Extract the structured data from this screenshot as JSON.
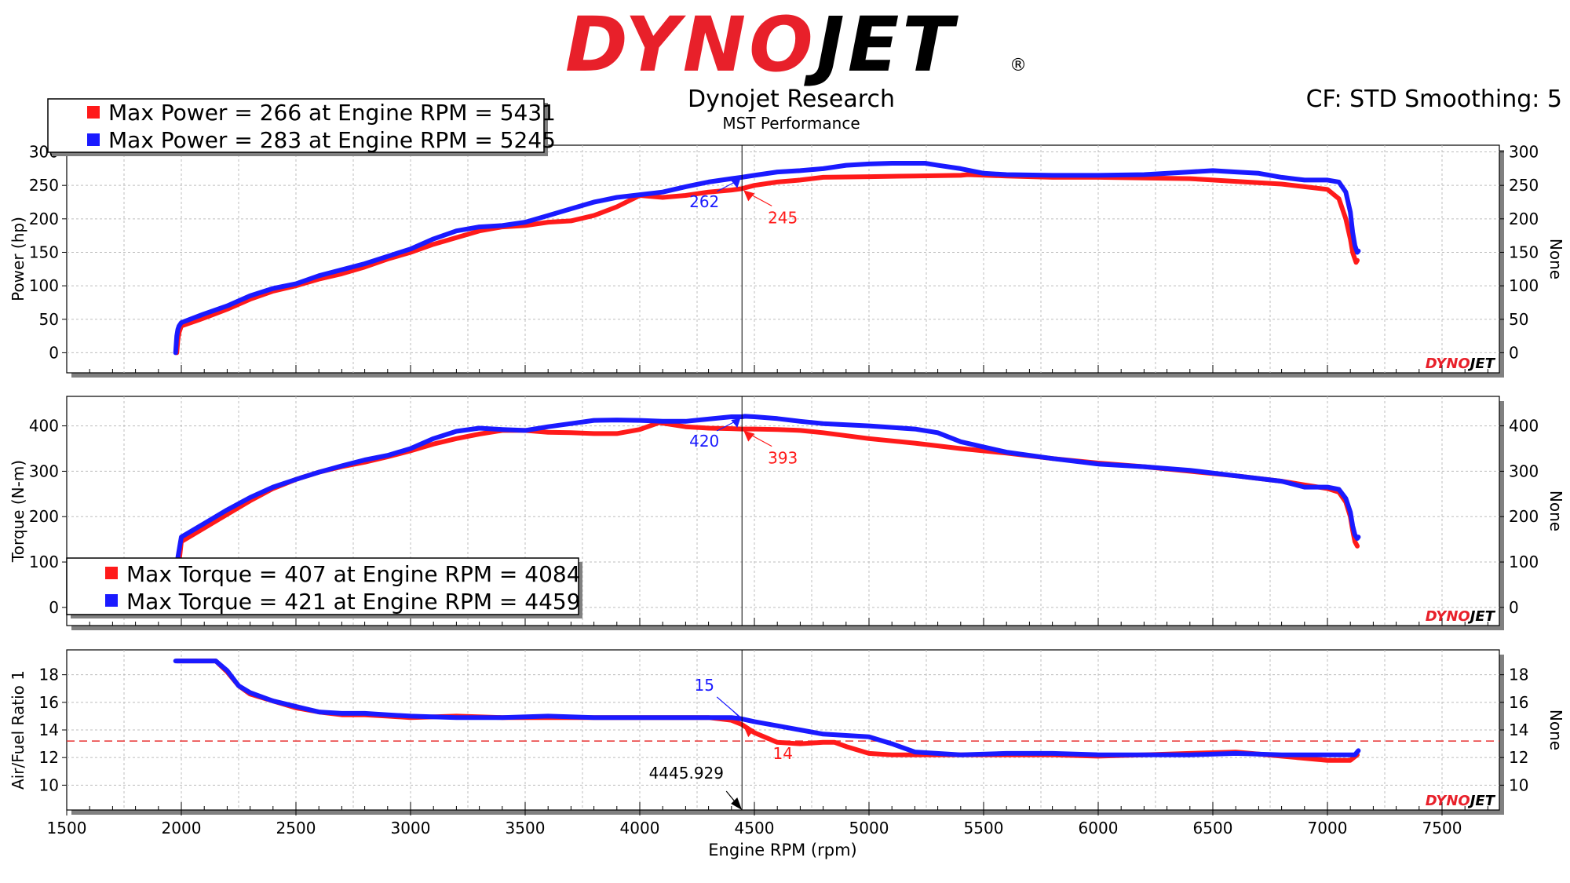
{
  "header": {
    "logo_text_red": "DYNO",
    "logo_text_black": "JET",
    "registered_mark": "®",
    "title": "Dynojet Research",
    "subtitle": "MST Performance",
    "settings": "CF: STD Smoothing: 5",
    "watermark_red": "DYNO",
    "watermark_black": "JET"
  },
  "colors": {
    "run1": "#ff1a1a",
    "run2": "#1a1aff",
    "afr_target_line": "#e83030",
    "frame": "#000000",
    "shadow": "#808080"
  },
  "chart_data": [
    {
      "type": "line",
      "panel": "power",
      "ylabel": "Power (hp)",
      "ylabel_right": "None",
      "xlim": [
        1500,
        7750
      ],
      "ylim": [
        -30,
        310
      ],
      "yticks": [
        0,
        50,
        100,
        150,
        200,
        250,
        300
      ],
      "series": [
        {
          "name": "Run 1",
          "color": "#ff1a1a",
          "x": [
            1980,
            1985,
            1990,
            2000,
            2100,
            2200,
            2300,
            2400,
            2500,
            2600,
            2700,
            2800,
            2900,
            3000,
            3100,
            3200,
            3300,
            3400,
            3500,
            3600,
            3700,
            3800,
            3900,
            4000,
            4100,
            4200,
            4300,
            4400,
            4445,
            4500,
            4600,
            4700,
            4800,
            5000,
            5200,
            5400,
            5431,
            5600,
            5800,
            6000,
            6200,
            6400,
            6600,
            6800,
            6900,
            7000,
            7050,
            7080,
            7100,
            7110,
            7120,
            7125,
            7130
          ],
          "y": [
            0,
            20,
            30,
            40,
            52,
            65,
            80,
            92,
            100,
            110,
            118,
            128,
            140,
            150,
            162,
            172,
            182,
            188,
            190,
            195,
            197,
            205,
            218,
            235,
            232,
            235,
            240,
            243,
            245,
            250,
            255,
            258,
            262,
            263,
            264,
            265,
            266,
            264,
            262,
            262,
            261,
            260,
            256,
            252,
            248,
            244,
            230,
            200,
            170,
            150,
            140,
            135,
            138
          ]
        },
        {
          "name": "Run 2",
          "color": "#1a1aff",
          "x": [
            1975,
            1980,
            1985,
            1990,
            2000,
            2100,
            2200,
            2300,
            2400,
            2500,
            2600,
            2700,
            2800,
            2900,
            3000,
            3100,
            3200,
            3300,
            3400,
            3500,
            3600,
            3700,
            3800,
            3900,
            4000,
            4100,
            4200,
            4300,
            4400,
            4445,
            4500,
            4600,
            4700,
            4800,
            4900,
            5000,
            5100,
            5245,
            5300,
            5400,
            5500,
            5600,
            5800,
            6000,
            6200,
            6400,
            6500,
            6600,
            6700,
            6800,
            6900,
            7000,
            7050,
            7080,
            7100,
            7110,
            7120,
            7130,
            7135
          ],
          "y": [
            0,
            25,
            35,
            40,
            45,
            58,
            70,
            85,
            96,
            103,
            115,
            124,
            133,
            144,
            155,
            170,
            182,
            188,
            190,
            195,
            205,
            215,
            225,
            232,
            236,
            240,
            248,
            255,
            260,
            262,
            265,
            270,
            272,
            275,
            280,
            282,
            283,
            283,
            280,
            275,
            268,
            266,
            265,
            265,
            266,
            270,
            272,
            270,
            268,
            262,
            258,
            258,
            255,
            240,
            210,
            180,
            160,
            150,
            152
          ]
        }
      ],
      "legend": [
        {
          "text": "Max Power = 266 at Engine RPM = 5431",
          "color": "#ff1a1a"
        },
        {
          "text": "Max Power = 283 at Engine RPM = 5245",
          "color": "#1a1aff"
        }
      ],
      "legend_placement": "top-left",
      "annotations": [
        {
          "label": "262",
          "color": "#1a1aff"
        },
        {
          "label": "245",
          "color": "#ff1a1a"
        }
      ]
    },
    {
      "type": "line",
      "panel": "torque",
      "ylabel": "Torque (N-m)",
      "ylabel_right": "None",
      "xlim": [
        1500,
        7750
      ],
      "ylim": [
        -40,
        465
      ],
      "yticks": [
        0,
        100,
        200,
        300,
        400
      ],
      "series": [
        {
          "name": "Run 1",
          "color": "#ff1a1a",
          "x": [
            1990,
            2000,
            2100,
            2200,
            2300,
            2400,
            2500,
            2600,
            2700,
            2800,
            2900,
            3000,
            3100,
            3200,
            3300,
            3400,
            3500,
            3600,
            3700,
            3800,
            3900,
            4000,
            4084,
            4100,
            4200,
            4300,
            4400,
            4445,
            4500,
            4600,
            4700,
            4800,
            5000,
            5200,
            5400,
            5600,
            5800,
            6000,
            6200,
            6400,
            6600,
            6800,
            6900,
            7000,
            7050,
            7080,
            7100,
            7110,
            7120,
            7130
          ],
          "y": [
            100,
            145,
            175,
            205,
            235,
            262,
            282,
            298,
            310,
            320,
            332,
            345,
            360,
            372,
            382,
            390,
            390,
            386,
            385,
            383,
            383,
            392,
            407,
            406,
            398,
            395,
            394,
            393,
            393,
            392,
            390,
            385,
            372,
            362,
            350,
            340,
            328,
            318,
            310,
            300,
            290,
            278,
            270,
            262,
            254,
            232,
            200,
            170,
            145,
            135
          ]
        },
        {
          "name": "Run 2",
          "color": "#1a1aff",
          "x": [
            1985,
            1995,
            2000,
            2100,
            2200,
            2300,
            2400,
            2500,
            2600,
            2700,
            2800,
            2900,
            3000,
            3100,
            3200,
            3300,
            3400,
            3500,
            3600,
            3700,
            3800,
            3900,
            4000,
            4100,
            4200,
            4300,
            4400,
            4445,
            4459,
            4500,
            4600,
            4700,
            4800,
            5000,
            5200,
            5300,
            5400,
            5600,
            5800,
            6000,
            6200,
            6400,
            6600,
            6800,
            6900,
            7000,
            7050,
            7080,
            7100,
            7110,
            7120,
            7130,
            7135
          ],
          "y": [
            110,
            140,
            155,
            185,
            215,
            242,
            265,
            282,
            298,
            312,
            325,
            335,
            350,
            372,
            388,
            395,
            392,
            390,
            398,
            405,
            412,
            413,
            412,
            410,
            410,
            415,
            420,
            420,
            421,
            420,
            416,
            410,
            405,
            400,
            393,
            385,
            365,
            342,
            328,
            316,
            310,
            302,
            290,
            278,
            265,
            265,
            260,
            240,
            210,
            180,
            160,
            152,
            155
          ]
        }
      ],
      "legend": [
        {
          "text": "Max Torque = 407 at Engine RPM = 4084",
          "color": "#ff1a1a"
        },
        {
          "text": "Max Torque = 421 at Engine RPM = 4459",
          "color": "#1a1aff"
        }
      ],
      "legend_placement": "bottom-left",
      "annotations": [
        {
          "label": "420",
          "color": "#1a1aff"
        },
        {
          "label": "393",
          "color": "#ff1a1a"
        }
      ]
    },
    {
      "type": "line",
      "panel": "afr",
      "ylabel": "Air/Fuel Ratio 1",
      "ylabel_right": "None",
      "xlabel": "Engine RPM (rpm)",
      "xlim": [
        1500,
        7750
      ],
      "ylim": [
        8.2,
        19.8
      ],
      "yticks": [
        10,
        12,
        14,
        16,
        18
      ],
      "xticks": [
        1500,
        2000,
        2500,
        3000,
        3500,
        4000,
        4500,
        5000,
        5500,
        6000,
        6500,
        7000,
        7500
      ],
      "target_line": 13.2,
      "series": [
        {
          "name": "Run 1",
          "color": "#ff1a1a",
          "x": [
            1980,
            2000,
            2100,
            2150,
            2200,
            2250,
            2300,
            2400,
            2500,
            2600,
            2700,
            2800,
            2900,
            3000,
            3200,
            3400,
            3600,
            3800,
            4000,
            4200,
            4300,
            4400,
            4445,
            4500,
            4600,
            4700,
            4800,
            4850,
            4900,
            5000,
            5100,
            5200,
            5400,
            5600,
            5800,
            6000,
            6200,
            6400,
            6600,
            6800,
            7000,
            7100,
            7130
          ],
          "y": [
            19,
            19,
            19,
            19,
            18.2,
            17.2,
            16.6,
            16.1,
            15.6,
            15.3,
            15.1,
            15.1,
            15.0,
            14.9,
            15.0,
            14.9,
            14.9,
            14.9,
            14.9,
            14.9,
            14.9,
            14.7,
            14.4,
            13.8,
            13.1,
            13.0,
            13.1,
            13.1,
            12.8,
            12.3,
            12.2,
            12.2,
            12.2,
            12.2,
            12.2,
            12.1,
            12.2,
            12.3,
            12.4,
            12.1,
            11.8,
            11.8,
            12.2
          ]
        },
        {
          "name": "Run 2",
          "color": "#1a1aff",
          "x": [
            1975,
            2000,
            2100,
            2150,
            2200,
            2250,
            2300,
            2400,
            2500,
            2600,
            2700,
            2800,
            2900,
            3000,
            3200,
            3400,
            3600,
            3800,
            4000,
            4200,
            4300,
            4400,
            4445,
            4500,
            4600,
            4700,
            4800,
            4900,
            5000,
            5100,
            5200,
            5400,
            5600,
            5800,
            6000,
            6200,
            6400,
            6600,
            6800,
            7000,
            7100,
            7120,
            7135
          ],
          "y": [
            19,
            19,
            19,
            19,
            18.3,
            17.2,
            16.7,
            16.1,
            15.7,
            15.3,
            15.2,
            15.2,
            15.1,
            15.0,
            14.9,
            14.9,
            15.0,
            14.9,
            14.9,
            14.9,
            14.9,
            14.9,
            14.8,
            14.6,
            14.3,
            14.0,
            13.7,
            13.6,
            13.5,
            13.0,
            12.4,
            12.2,
            12.3,
            12.3,
            12.2,
            12.2,
            12.2,
            12.3,
            12.2,
            12.2,
            12.2,
            12.2,
            12.5
          ]
        }
      ],
      "annotations": [
        {
          "label": "15",
          "color": "#1a1aff"
        },
        {
          "label": "14",
          "color": "#ff1a1a"
        }
      ]
    }
  ],
  "cursor": {
    "rpm": 4445.929,
    "label": "4445.929"
  }
}
